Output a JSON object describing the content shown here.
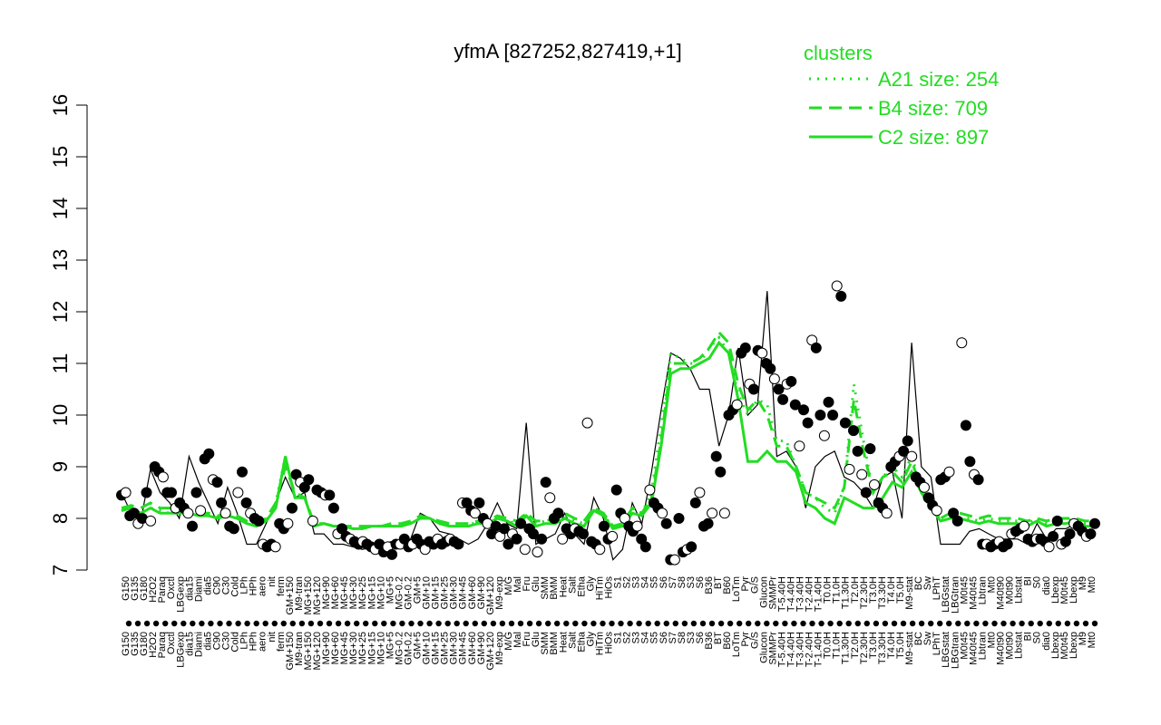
{
  "chart_data": {
    "type": "line",
    "title": "yfmA [827252,827419,+1]",
    "ylim": [
      7,
      16
    ],
    "yticks": [
      7,
      8,
      9,
      10,
      11,
      12,
      13,
      14,
      15,
      16
    ],
    "grid": false,
    "legend_position": "top-right",
    "legend": {
      "title": "clusters",
      "entries": [
        {
          "label": "A21 size: 254",
          "style": "dotted"
        },
        {
          "label": "B4 size: 709",
          "style": "dashed"
        },
        {
          "label": "C2 size: 897",
          "style": "solid"
        }
      ]
    },
    "colors": {
      "accent": "#22dd22",
      "line": "#000000"
    },
    "x_labels_upper": [
      "G150",
      "G135",
      "G180",
      "H2O2",
      "Paraq",
      "Oxctl",
      "LBGexp",
      "dia15",
      "Diami",
      "dia5",
      "C90",
      "C30",
      "Cold",
      "LPh",
      "HPh",
      "aero",
      "nit",
      "ferm",
      "GM+150",
      "M9-tran",
      "MG+150",
      "MG+120",
      "MG+90",
      "MG+60",
      "MG+45",
      "MG+30",
      "MG+25",
      "MG+15",
      "MG+10",
      "MG+5",
      "MG-0.2",
      "GM-0.2",
      "GM+5",
      "GM+10",
      "GM+15",
      "GM+25",
      "GM+30",
      "GM+45",
      "GM+60",
      "GM+90",
      "GM+120",
      "M9-exp",
      "M/G",
      "Mal",
      "Fru",
      "Glu",
      "SMM",
      "BMM",
      "Heat",
      "Salt",
      "Etha",
      "Gly",
      "HiTm",
      "HiOs",
      "S1",
      "S2",
      "S3",
      "S4",
      "S5",
      "S6",
      "S7",
      "S8",
      "S3",
      "S6",
      "B36",
      "BT",
      "B60",
      "LoTm",
      "Pyr",
      "G/S",
      "Glucon",
      "SMMPr",
      "T-5.40H",
      "T-4.40H",
      "T-3.40H",
      "T-2.40H",
      "T-1.40H",
      "T0.0H",
      "T1.0H",
      "T1.30H",
      "T2.0H",
      "T2.30H",
      "T3.0H",
      "T3.30H",
      "T4.0H",
      "T5.0H",
      "M9-stat",
      "BC",
      "Sw",
      "LPhT",
      "LBGstat",
      "LBGtran",
      "M0t45",
      "M40t45",
      "Lbtran",
      "Mt0",
      "M40t90",
      "M0t90",
      "Lbstat",
      "BI",
      "S0",
      "dia0",
      "Lbexp",
      "M0t45",
      "Lbexp",
      "M9",
      "Mt0"
    ],
    "x_labels_lower": [
      "G150",
      "G135",
      "G180",
      "H2O2",
      "Paraq",
      "Oxctl",
      "LBGexp",
      "dia15",
      "Diami",
      "dia5",
      "C90",
      "C30",
      "Cold",
      "LPh",
      "HPh",
      "aero",
      "nit",
      "ferm",
      "GM+150",
      "M9-tran",
      "MG+150",
      "MG+120",
      "MG+90",
      "MG+60",
      "MG+45",
      "MG+30",
      "MG+25",
      "MG+15",
      "MG+10",
      "MG+5",
      "MG-0.2",
      "GM-0.2",
      "GM+5",
      "GM+10",
      "GM+15",
      "GM+25",
      "GM+30",
      "GM+45",
      "GM+60",
      "GM+90",
      "GM+120",
      "M9-exp",
      "M/G",
      "Mal",
      "Fru",
      "Glu",
      "SMM",
      "BMM",
      "Heat",
      "Salt",
      "Etha",
      "Gly",
      "HiTm",
      "HiOs",
      "S1",
      "S2",
      "S3",
      "S4",
      "S5",
      "S6",
      "S7",
      "S8",
      "S3",
      "S6",
      "B36",
      "BT",
      "B60",
      "LoTm",
      "Pyr",
      "G/S",
      "Glucon",
      "SMMPr",
      "T-5.40H",
      "T-4.40H",
      "T-3.40H",
      "T-2.40H",
      "T-1.40H",
      "T0.0H",
      "T1.0H",
      "T1.30H",
      "T2.0H",
      "T2.30H",
      "T3.0H",
      "T3.30H",
      "T4.0H",
      "T5.0H",
      "M9-stat",
      "BC",
      "Sw",
      "LPhT",
      "LBGstat",
      "LBGtran",
      "M0t45",
      "M40t45",
      "Lbtran",
      "Mt0",
      "M40t90",
      "M0t90",
      "Lbstat",
      "BI",
      "S0",
      "dia0",
      "Lbexp",
      "M0t45",
      "Lbexp",
      "M9",
      "Mt0"
    ],
    "series": [
      {
        "style": "solid",
        "values": [
          8.5,
          8.1,
          7.95,
          8.95,
          8.5,
          8.3,
          8.0,
          9.2,
          8.7,
          8.3,
          7.9,
          8.6,
          8.1,
          7.5,
          7.5,
          7.9,
          8.3,
          8.8,
          8.4,
          8.5,
          7.7,
          7.7,
          7.5,
          7.5,
          7.45,
          7.4,
          7.45,
          7.5,
          7.55,
          7.5,
          7.6,
          8.1,
          8.0,
          7.75,
          7.7,
          7.6,
          7.5,
          7.6,
          7.9,
          8.3,
          7.9,
          7.8,
          9.85,
          7.5,
          7.6,
          7.7,
          8.1,
          7.7,
          7.5,
          8.4,
          8.0,
          7.2,
          7.4,
          8.3,
          7.9,
          8.9,
          10.1,
          11.2,
          11.1,
          10.9,
          10.5,
          10.5,
          9.4,
          10.0,
          11.3,
          10.0,
          10.2,
          12.4,
          9.2,
          9.3,
          9.0,
          8.2,
          9.0,
          9.2,
          9.3,
          8.8,
          8.7,
          8.5,
          8.2,
          8.8,
          8.9,
          8.0,
          11.4,
          9.0,
          8.8,
          7.5,
          7.5,
          7.5,
          7.75,
          7.8,
          7.7,
          7.6,
          7.6,
          7.6,
          7.5,
          7.9,
          7.6,
          7.8,
          7.8,
          7.9,
          7.7,
          7.7
        ]
      },
      {
        "style": "dotted",
        "values": [
          8.15,
          8.2,
          8.1,
          8.2,
          8.15,
          8.1,
          8.1,
          8.1,
          8.1,
          8.1,
          8.0,
          8.1,
          8.0,
          7.95,
          7.9,
          7.95,
          8.3,
          9.2,
          8.4,
          8.4,
          7.85,
          7.9,
          7.85,
          7.85,
          7.8,
          7.8,
          7.85,
          7.85,
          7.85,
          7.85,
          7.9,
          8.0,
          8.0,
          7.9,
          7.9,
          7.9,
          7.9,
          7.9,
          7.9,
          8.0,
          7.95,
          7.9,
          8.1,
          7.9,
          7.95,
          7.95,
          8.05,
          7.95,
          7.9,
          8.2,
          8.1,
          7.8,
          7.9,
          8.2,
          8.1,
          8.5,
          9.8,
          11.2,
          11.1,
          11.0,
          11.0,
          11.3,
          11.5,
          11.2,
          10.4,
          10.0,
          10.3,
          10.2,
          9.5,
          9.5,
          9.0,
          8.5,
          8.4,
          8.2,
          8.1,
          8.6,
          10.6,
          9.5,
          8.5,
          8.8,
          9.0,
          8.8,
          9.2,
          8.6,
          8.3,
          7.95,
          8.0,
          8.0,
          8.0,
          7.95,
          8.0,
          7.95,
          7.95,
          7.95,
          7.9,
          8.0,
          7.9,
          7.95,
          7.95,
          8.0,
          7.9,
          7.9
        ]
      },
      {
        "style": "dashed",
        "values": [
          8.2,
          8.25,
          8.2,
          8.3,
          8.2,
          8.2,
          8.15,
          8.15,
          8.1,
          8.1,
          8.05,
          8.1,
          8.05,
          7.95,
          7.9,
          8.0,
          8.3,
          9.0,
          8.5,
          8.4,
          7.9,
          7.9,
          7.85,
          7.85,
          7.85,
          7.85,
          7.85,
          7.85,
          7.9,
          7.9,
          7.95,
          8.05,
          8.0,
          7.95,
          7.9,
          7.9,
          7.9,
          7.95,
          7.95,
          8.05,
          8.0,
          7.95,
          8.1,
          7.95,
          7.95,
          8.0,
          8.1,
          8.0,
          7.95,
          8.2,
          8.1,
          7.85,
          7.9,
          8.2,
          8.1,
          8.4,
          9.5,
          11.0,
          11.0,
          11.0,
          11.1,
          11.3,
          11.6,
          11.4,
          10.6,
          10.1,
          10.3,
          10.0,
          9.4,
          9.4,
          9.0,
          8.5,
          8.4,
          8.3,
          8.2,
          8.6,
          10.3,
          9.3,
          8.5,
          8.8,
          8.9,
          8.7,
          9.1,
          8.6,
          8.3,
          8.0,
          8.1,
          8.1,
          8.05,
          8.0,
          8.05,
          8.0,
          8.0,
          8.0,
          7.95,
          8.0,
          7.95,
          8.0,
          8.0,
          8.0,
          7.95,
          7.95
        ]
      },
      {
        "style": "solid",
        "values": [
          8.15,
          8.2,
          8.1,
          8.2,
          8.1,
          8.1,
          8.1,
          8.1,
          8.05,
          8.05,
          8.0,
          8.05,
          8.0,
          7.9,
          7.85,
          7.95,
          8.2,
          9.2,
          8.4,
          8.4,
          7.85,
          7.9,
          7.85,
          7.85,
          7.8,
          7.8,
          7.85,
          7.85,
          7.85,
          7.85,
          7.9,
          8.0,
          8.0,
          7.9,
          7.85,
          7.85,
          7.85,
          7.9,
          7.9,
          8.0,
          7.95,
          7.85,
          8.05,
          7.85,
          7.9,
          7.9,
          8.0,
          7.9,
          7.85,
          8.15,
          8.05,
          7.8,
          7.85,
          8.1,
          8.05,
          8.3,
          9.4,
          10.8,
          10.9,
          10.9,
          11.0,
          11.1,
          11.4,
          11.2,
          10.3,
          9.1,
          9.1,
          9.3,
          9.1,
          9.1,
          8.9,
          8.3,
          8.2,
          8.0,
          7.9,
          8.4,
          8.3,
          8.2,
          8.2,
          8.4,
          8.7,
          8.6,
          8.9,
          8.5,
          8.2,
          7.95,
          8.0,
          8.0,
          7.95,
          7.9,
          7.95,
          7.9,
          7.9,
          7.9,
          7.85,
          7.95,
          7.85,
          7.9,
          7.9,
          7.95,
          7.85,
          7.85
        ]
      }
    ],
    "points": [
      8.45,
      8.5,
      8.05,
      8.1,
      7.9,
      8.0,
      8.5,
      7.95,
      9.0,
      8.9,
      8.8,
      8.5,
      8.5,
      8.2,
      8.3,
      8.2,
      8.1,
      7.85,
      8.5,
      8.15,
      9.15,
      9.25,
      8.75,
      8.7,
      8.3,
      8.1,
      7.85,
      7.8,
      8.5,
      8.9,
      8.3,
      8.1,
      8.0,
      7.95,
      7.5,
      7.45,
      7.5,
      7.45,
      7.9,
      7.8,
      7.9,
      8.2,
      8.85,
      8.7,
      8.6,
      8.75,
      7.95,
      8.55,
      8.5,
      8.45,
      8.45,
      8.2,
      7.7,
      7.8,
      7.65,
      7.6,
      7.55,
      7.5,
      7.55,
      7.5,
      7.45,
      7.4,
      7.5,
      7.35,
      7.45,
      7.3,
      7.5,
      7.5,
      7.6,
      7.45,
      7.5,
      7.6,
      7.5,
      7.4,
      7.55,
      7.5,
      7.6,
      7.5,
      7.55,
      7.6,
      7.55,
      7.5,
      8.3,
      8.3,
      8.15,
      8.1,
      8.3,
      8.0,
      7.9,
      7.7,
      7.85,
      7.65,
      7.8,
      7.5,
      7.7,
      7.6,
      7.9,
      7.4,
      7.8,
      7.7,
      7.35,
      7.6,
      8.7,
      8.4,
      8.0,
      8.1,
      7.6,
      7.8,
      7.7,
      7.8,
      7.75,
      7.7,
      9.85,
      7.55,
      7.5,
      7.4,
      7.85,
      7.6,
      7.65,
      8.55,
      8.1,
      8.0,
      7.85,
      7.75,
      7.85,
      7.6,
      7.45,
      8.55,
      8.3,
      8.2,
      8.1,
      7.9,
      7.2,
      7.2,
      8.0,
      7.35,
      7.4,
      7.45,
      8.3,
      8.5,
      7.85,
      7.9,
      8.1,
      9.2,
      8.9,
      8.1,
      10.0,
      10.1,
      10.2,
      11.2,
      11.3,
      10.6,
      10.5,
      11.25,
      11.2,
      11.0,
      10.9,
      10.7,
      10.5,
      10.3,
      10.6,
      10.65,
      10.2,
      9.4,
      10.1,
      9.85,
      11.45,
      11.3,
      10.0,
      9.6,
      10.25,
      10.0,
      12.5,
      12.3,
      9.85,
      8.95,
      9.7,
      9.3,
      8.85,
      8.5,
      9.35,
      8.65,
      8.3,
      8.2,
      8.1,
      9.0,
      9.1,
      9.2,
      9.3,
      9.5,
      9.2,
      8.8,
      8.7,
      8.6,
      8.4,
      8.25,
      8.15,
      8.75,
      8.8,
      8.9,
      8.1,
      7.95,
      11.4,
      9.8,
      9.1,
      8.85,
      8.75,
      7.5,
      7.5,
      7.45,
      7.5,
      7.55,
      7.45,
      7.5,
      7.7,
      7.75,
      7.8,
      7.85,
      7.6,
      7.55,
      7.6,
      7.6,
      7.55,
      7.45,
      7.65,
      7.95,
      7.5,
      7.55,
      7.7,
      7.9,
      7.85,
      7.75,
      7.65,
      7.7,
      7.9
    ]
  }
}
